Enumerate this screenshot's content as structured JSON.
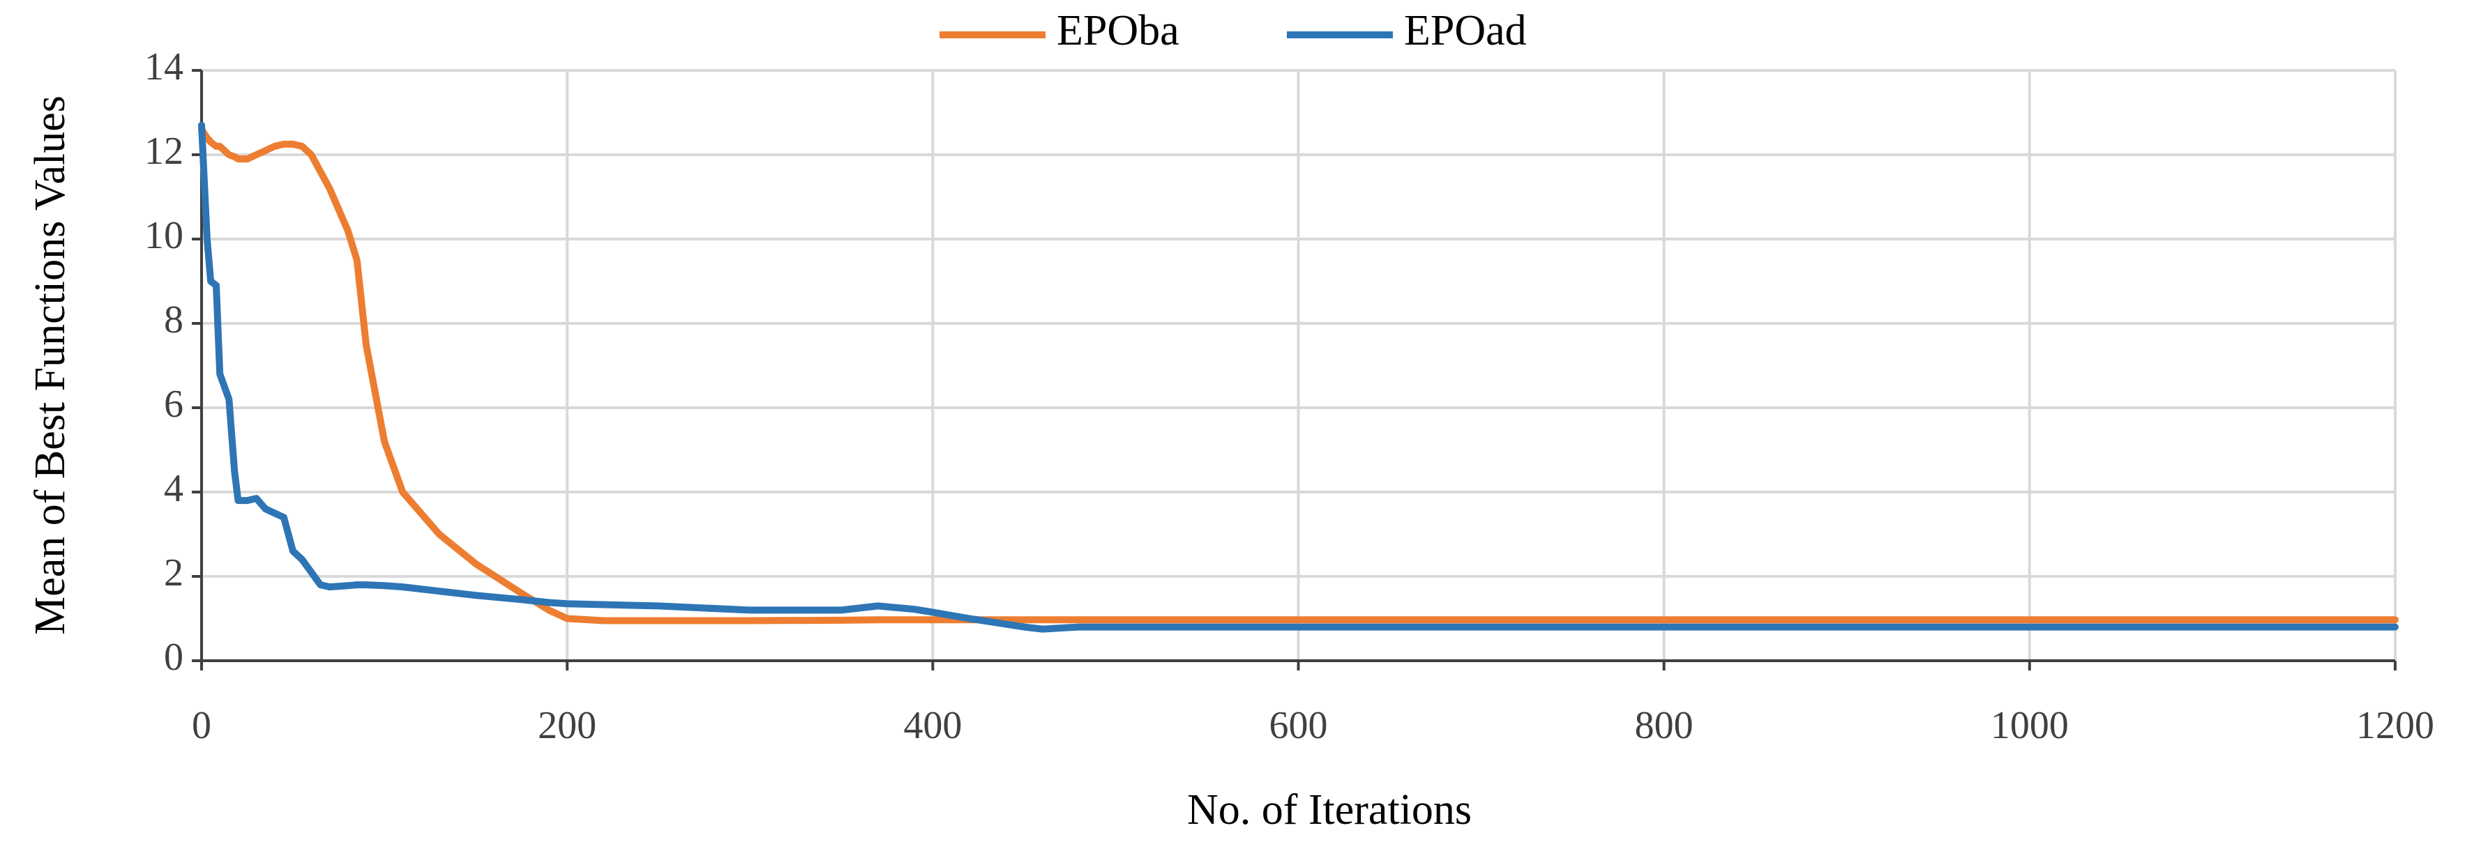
{
  "chart_data": {
    "type": "line",
    "xlabel": "No. of Iterations",
    "ylabel": "Mean of Best Functions Values",
    "x": [
      0,
      3,
      5,
      8,
      10,
      15,
      18,
      20,
      25,
      30,
      35,
      40,
      45,
      50,
      55,
      60,
      65,
      70,
      80,
      85,
      90,
      100,
      110,
      130,
      150,
      175,
      190,
      200,
      220,
      250,
      300,
      350,
      370,
      390,
      400,
      420,
      450,
      460,
      480,
      1200
    ],
    "series": [
      {
        "name": "EPOba",
        "color": "#ed7d31",
        "values": [
          12.6,
          12.4,
          12.3,
          12.2,
          12.2,
          12.0,
          11.95,
          11.9,
          11.9,
          12.0,
          12.1,
          12.2,
          12.25,
          12.25,
          12.2,
          12.0,
          11.6,
          11.2,
          10.2,
          9.5,
          7.5,
          5.2,
          4.0,
          3.0,
          2.3,
          1.6,
          1.2,
          1.0,
          0.95,
          0.95,
          0.95,
          0.96,
          0.97,
          0.97,
          0.97,
          0.97,
          0.97,
          0.97,
          0.97,
          0.97
        ]
      },
      {
        "name": "EPOad",
        "color": "#2e75b6",
        "values": [
          12.7,
          10.0,
          9.0,
          8.9,
          6.8,
          6.2,
          4.5,
          3.8,
          3.8,
          3.85,
          3.6,
          3.5,
          3.4,
          2.6,
          2.4,
          2.1,
          1.8,
          1.75,
          1.78,
          1.8,
          1.8,
          1.78,
          1.75,
          1.65,
          1.55,
          1.45,
          1.38,
          1.35,
          1.33,
          1.3,
          1.2,
          1.2,
          1.3,
          1.22,
          1.15,
          1.0,
          0.8,
          0.75,
          0.8,
          0.8
        ]
      }
    ],
    "xlim": [
      0,
      1200
    ],
    "xticks": [
      0,
      200,
      400,
      600,
      800,
      1000,
      1200
    ],
    "ylim": [
      0,
      14
    ],
    "yticks": [
      0,
      2,
      4,
      6,
      8,
      10,
      12,
      14
    ],
    "grid": true,
    "legend": "top"
  }
}
